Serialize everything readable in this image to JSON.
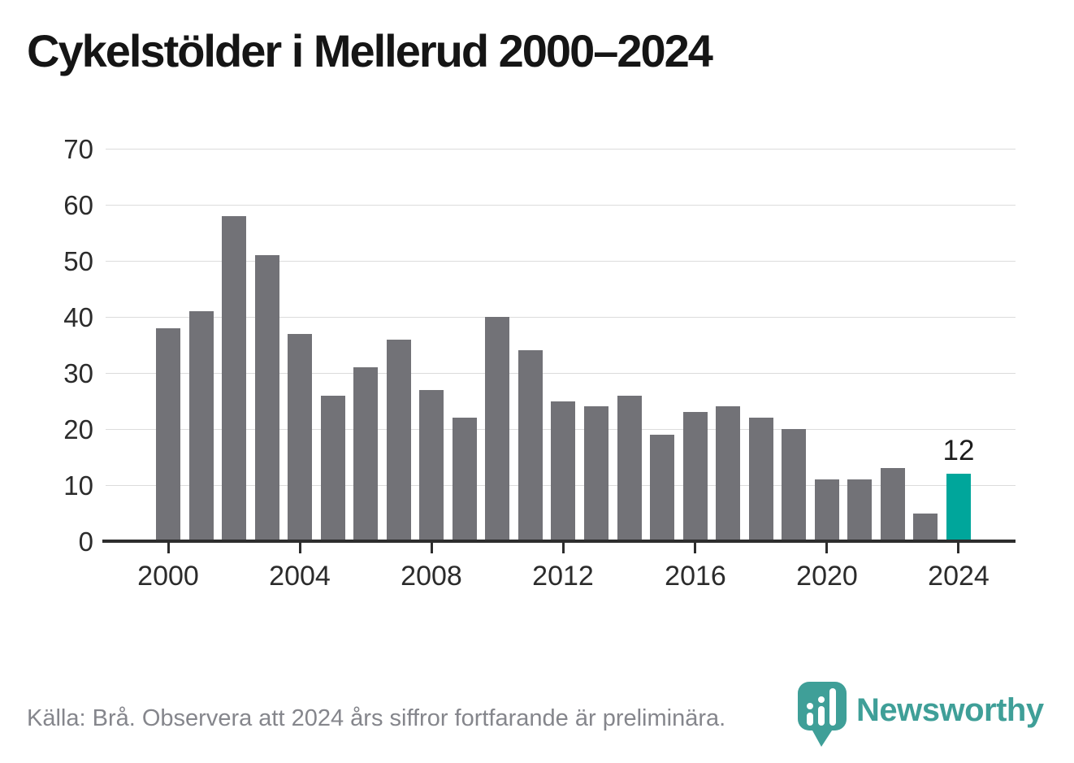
{
  "title": "Cykelstölder i Mellerud 2000–2024",
  "chart_data": {
    "type": "bar",
    "title": "Cykelstölder i Mellerud 2000–2024",
    "x": [
      2000,
      2001,
      2002,
      2003,
      2004,
      2005,
      2006,
      2007,
      2008,
      2009,
      2010,
      2011,
      2012,
      2013,
      2014,
      2015,
      2016,
      2017,
      2018,
      2019,
      2020,
      2021,
      2022,
      2023,
      2024
    ],
    "values": [
      38,
      41,
      58,
      51,
      37,
      26,
      31,
      36,
      27,
      22,
      40,
      34,
      25,
      24,
      26,
      19,
      23,
      24,
      22,
      20,
      11,
      11,
      13,
      5,
      12
    ],
    "highlight_index": 24,
    "highlight_value_label": "12",
    "xlabel": "",
    "ylabel": "",
    "ylim": [
      0,
      70
    ],
    "yticks": [
      0,
      10,
      20,
      30,
      40,
      50,
      60,
      70
    ],
    "xticks": [
      2000,
      2004,
      2008,
      2012,
      2016,
      2020,
      2024
    ],
    "grid": true,
    "legend": "none",
    "bar_color": "#727277",
    "highlight_color": "#00a69b",
    "gridline_color": "#dcdcdc",
    "axis_color": "#2d2d2d"
  },
  "footer": {
    "source_text": "Källa: Brå. Observera att 2024 års siffror fortfarande är preliminära.",
    "brand_name": "Newsworthy",
    "brand_color": "#3f9f98"
  }
}
